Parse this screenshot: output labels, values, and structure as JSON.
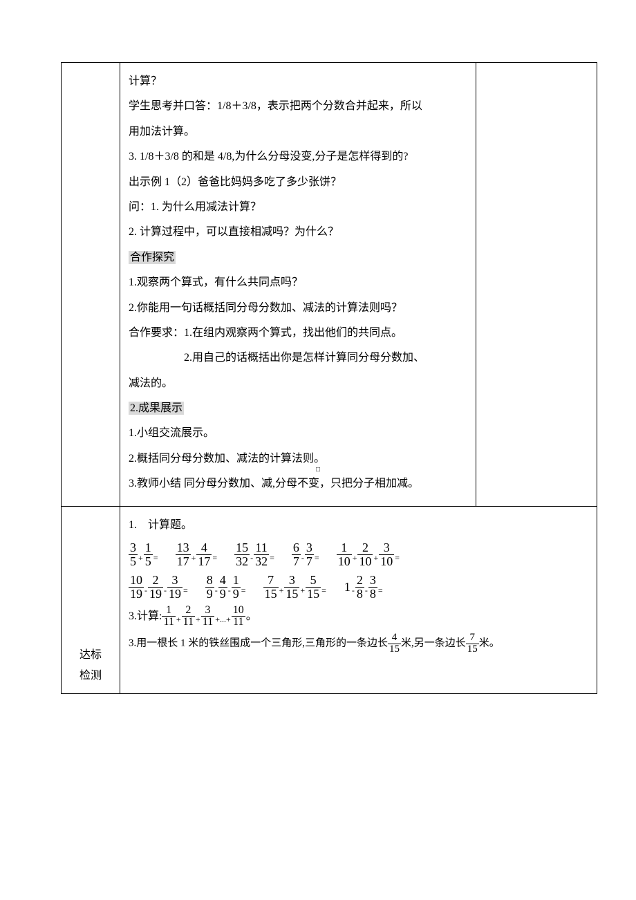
{
  "sideLabels": {
    "dabiao": "达标",
    "jiance": "检测"
  },
  "upper": {
    "l1": "计算？",
    "l2": "学生思考并口答：1/8＋3/8，表示把两个分数合并起来，所以",
    "l3": "用加法计算。",
    "l4": "3. 1/8＋3/8 的和是 4/8,为什么分母没变,分子是怎样得到的?",
    "l5": "出示例 1（2）爸爸比妈妈多吃了多少张饼？",
    "l6": "问：1. 为什么用减法计算？",
    "l7": "2. 计算过程中，可以直接相减吗？为什么？",
    "l8": "合作探究",
    "l9": "1.观察两个算式，有什么共同点吗？",
    "l10": "2.你能用一句话概括同分母分数加、减法的计算法则吗？",
    "l11": "合作要求：1.在组内观察两个算式，找出他们的共同点。",
    "l12": "2.用自己的话概括出你是怎样计算同分母分数加、",
    "l13": "减法的。",
    "l14": "2.成果展示",
    "l15": "1.小组交流展示。",
    "l16": "2.概括同分母分数加、减法的计算法则。",
    "l17": "3.教师小结 同分母分数加、减,分母不变，只把分子相加减。"
  },
  "lower": {
    "q1_lead": "1.　计算题。",
    "row1": [
      {
        "terms": [
          [
            "3",
            "5"
          ],
          [
            "1",
            "5"
          ]
        ],
        "ops": [
          "+"
        ],
        "eq": "="
      },
      {
        "terms": [
          [
            "13",
            "17"
          ],
          [
            "4",
            "17"
          ]
        ],
        "ops": [
          "+"
        ],
        "eq": "="
      },
      {
        "terms": [
          [
            "15",
            "32"
          ],
          [
            "11",
            "32"
          ]
        ],
        "ops": [
          "-"
        ],
        "eq": "="
      },
      {
        "terms": [
          [
            "6",
            "7"
          ],
          [
            "3",
            "7"
          ]
        ],
        "ops": [
          "-"
        ],
        "eq": "="
      },
      {
        "terms": [
          [
            "1",
            "10"
          ],
          [
            "2",
            "10"
          ],
          [
            "3",
            "10"
          ]
        ],
        "ops": [
          "+",
          "+"
        ],
        "eq": "="
      }
    ],
    "row2": [
      {
        "terms": [
          [
            "10",
            "19"
          ],
          [
            "2",
            "19"
          ],
          [
            "3",
            "19"
          ]
        ],
        "ops": [
          "-",
          "-"
        ],
        "eq": "="
      },
      {
        "terms": [
          [
            "8",
            "9"
          ],
          [
            "4",
            "9"
          ],
          [
            "1",
            "9"
          ]
        ],
        "ops": [
          "-",
          "-"
        ],
        "eq": "="
      },
      {
        "terms": [
          [
            "7",
            "15"
          ],
          [
            "3",
            "15"
          ],
          [
            "5",
            "15"
          ]
        ],
        "ops": [
          "+",
          "+"
        ],
        "eq": "="
      },
      {
        "prefix": "1",
        "terms": [
          [
            "2",
            "8"
          ],
          [
            "3",
            "8"
          ]
        ],
        "ops": [
          "-",
          "-"
        ],
        "prefixOp": "-",
        "eq": "="
      }
    ],
    "q3a_label": "3.计算:",
    "q3a_terms": [
      [
        "1",
        "11"
      ],
      [
        "2",
        "11"
      ],
      [
        "3",
        "11"
      ],
      [
        "10",
        "11"
      ]
    ],
    "q3a_ops": [
      "+",
      "+",
      "+...+"
    ],
    "q3a_end": "。",
    "q3b_pre": "3.用一根长 1 米的铁丝围成一个三角形,三角形的一条边长",
    "q3b_frac1": [
      "4",
      "15"
    ],
    "q3b_mid": "米,另一条边长",
    "q3b_frac2": [
      "7",
      "15"
    ],
    "q3b_post": "米。"
  },
  "marker": "□"
}
